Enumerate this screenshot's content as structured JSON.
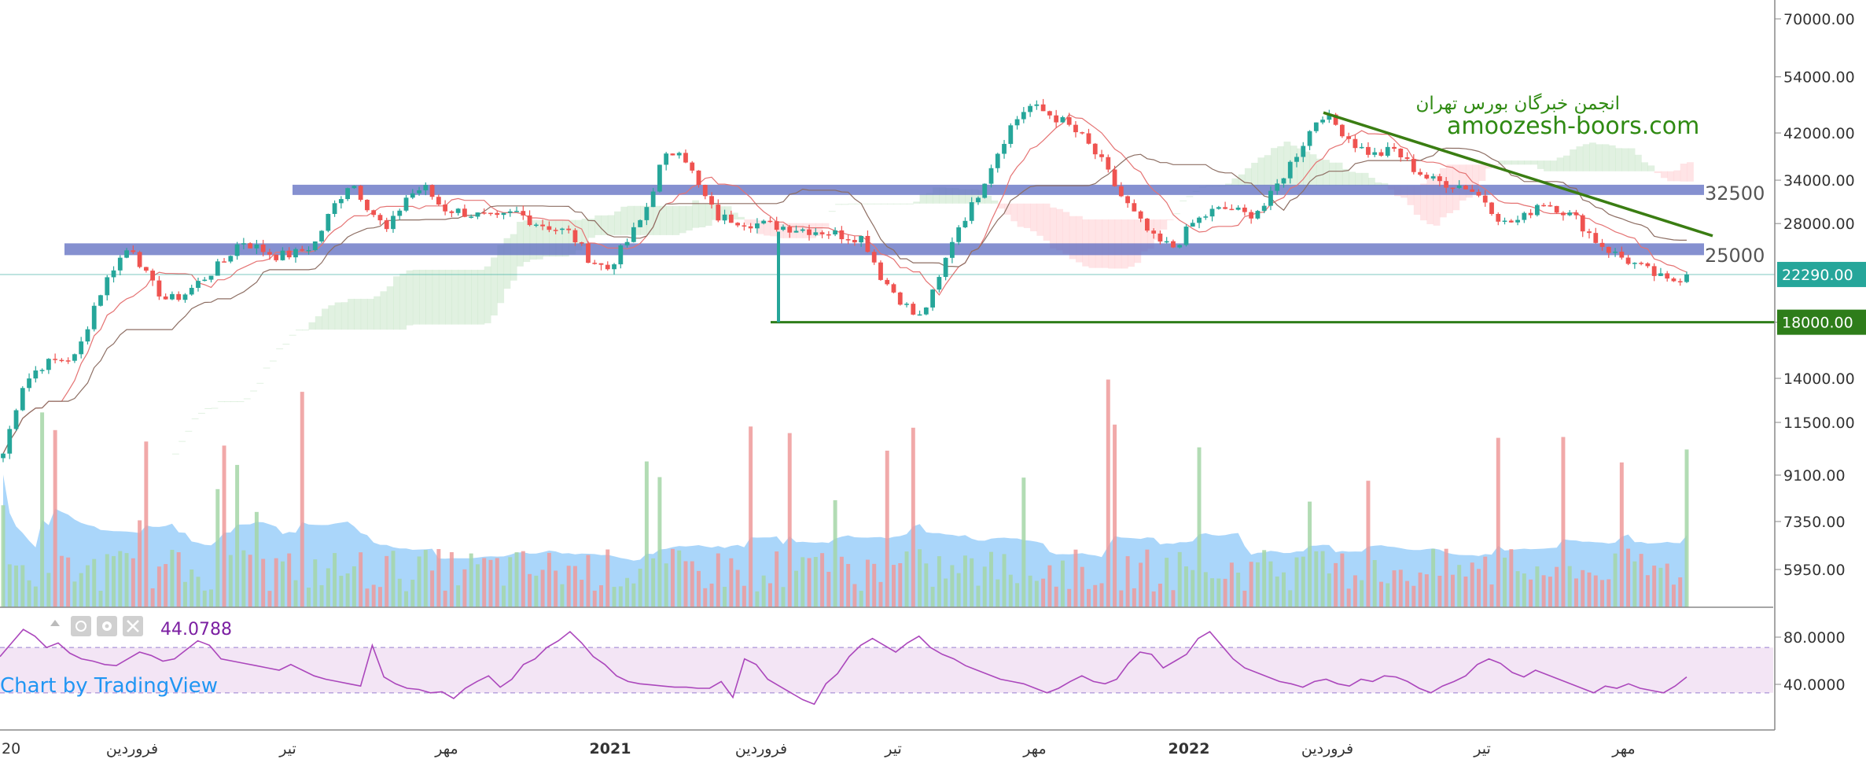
{
  "chart_data": {
    "type": "candlestick",
    "watermark": {
      "line1": "انجمن خبرگان بورس تهران",
      "line2": "amoozesh-boors.com"
    },
    "price_axis": {
      "ticks": [
        "70000.00",
        "54000.00",
        "42000.00",
        "34000.00",
        "28000.00",
        "18000.00",
        "14000.00",
        "11500.00",
        "9100.00",
        "7350.00",
        "5950.00"
      ],
      "tick_values": [
        70000,
        54000,
        42000,
        34000,
        28000,
        18000,
        14000,
        11500,
        9100,
        7350,
        5950
      ],
      "scale": "log"
    },
    "last_price": {
      "label": "22290.00",
      "value": 22290,
      "color": "#26a69a"
    },
    "support": {
      "label": "18000.00",
      "value": 18000,
      "color": "#2e7d1a"
    },
    "resistance_zones": [
      {
        "label": "32500",
        "value": 32500
      },
      {
        "label": "25000",
        "value": 25000
      }
    ],
    "trendline": {
      "from_value": 46000,
      "to_value": 26500,
      "color": "#3a7d12"
    },
    "time_axis": {
      "labels": [
        "20",
        "فروردین",
        "تیر",
        "مهر",
        "2021",
        "فروردین",
        "تیر",
        "مهر",
        "2022",
        "فروردین",
        "تیر",
        "مهر"
      ],
      "bold": [
        false,
        false,
        false,
        false,
        true,
        false,
        false,
        false,
        true,
        false,
        false,
        false
      ]
    },
    "close_path": [
      10000,
      13500,
      14800,
      15200,
      15400,
      19500,
      23000,
      25500,
      21500,
      19800,
      20500,
      22000,
      23500,
      26000,
      25000,
      24200,
      24500,
      25500,
      30000,
      34000,
      30000,
      27000,
      31500,
      33000,
      30000,
      29500,
      29000,
      28500,
      29500,
      28200,
      27500,
      26800,
      24000,
      22800,
      25500,
      29000,
      37000,
      39500,
      33000,
      28800,
      28500,
      28000,
      27800,
      27500,
      27200,
      27000,
      26500,
      26300,
      22000,
      20000,
      18200,
      21000,
      27000,
      30500,
      36500,
      43000,
      47500,
      46000,
      44000,
      41000,
      37000,
      32000,
      28500,
      25800,
      25200,
      28000,
      29500,
      30000,
      29000,
      30500,
      35000,
      40000,
      46000,
      43000,
      39500,
      38000,
      39000,
      36000,
      34000,
      33500,
      33000,
      31000,
      28000,
      28500,
      31000,
      30000,
      28500,
      26000,
      24500,
      23500,
      22500,
      21500,
      22290
    ],
    "volume_ticks": [
      "11500.00",
      "9100.00",
      "7350.00",
      "5950.00"
    ],
    "rsi": {
      "value_label": "44.0788",
      "ticks": [
        "80.0000",
        "40.0000"
      ],
      "tick_values": [
        80,
        40
      ],
      "upper_band": 70,
      "lower_band": 30,
      "values": [
        62,
        74,
        86,
        80,
        70,
        74,
        65,
        60,
        58,
        55,
        54,
        60,
        66,
        63,
        58,
        60,
        68,
        76,
        72,
        60,
        58,
        56,
        54,
        52,
        50,
        55,
        50,
        45,
        42,
        40,
        38,
        36,
        72,
        44,
        38,
        34,
        33,
        30,
        31,
        25,
        34,
        40,
        45,
        35,
        42,
        55,
        60,
        70,
        76,
        84,
        74,
        62,
        55,
        45,
        40,
        38,
        37,
        36,
        35,
        35,
        34,
        34,
        40,
        26,
        60,
        55,
        42,
        36,
        30,
        24,
        20,
        38,
        47,
        62,
        72,
        78,
        72,
        66,
        74,
        80,
        70,
        64,
        60,
        54,
        50,
        46,
        42,
        40,
        38,
        34,
        30,
        34,
        40,
        45,
        40,
        38,
        42,
        56,
        66,
        64,
        52,
        58,
        64,
        78,
        84,
        72,
        60,
        52,
        48,
        44,
        40,
        38,
        35,
        40,
        42,
        38,
        36,
        42,
        40,
        45,
        44,
        40,
        34,
        30,
        36,
        40,
        45,
        55,
        60,
        56,
        48,
        44,
        50,
        46,
        42,
        38,
        34,
        30,
        36,
        34,
        38,
        34,
        32,
        30,
        36,
        44
      ]
    },
    "branding": {
      "text": "Chart by TradingView"
    },
    "colors": {
      "up": "#26a69a",
      "down": "#ef5350",
      "zone": "#5c6bc0",
      "cloud_up": "#c8e6c9",
      "cloud_down": "#ffcdd2",
      "volume_ma": "#64b5f6",
      "rsi_line": "#ab47bc",
      "rsi_band": "#f3e5f5"
    }
  }
}
